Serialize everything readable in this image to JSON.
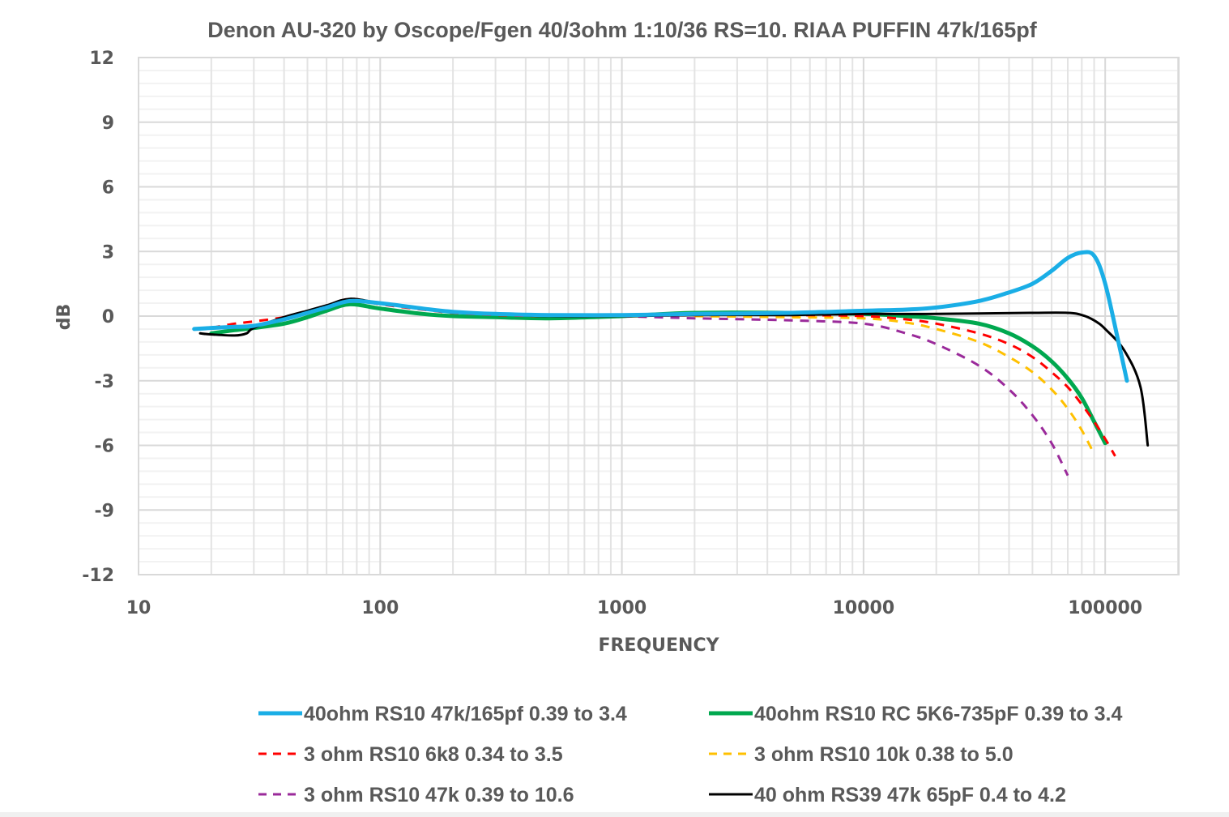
{
  "chart_data": {
    "type": "line",
    "title": "Denon AU-320 by Oscope/Fgen 40/3ohm 1:10/36 RS=10. RIAA PUFFIN 47k/165pf",
    "xlabel": "FREQUENCY",
    "ylabel": "dB",
    "xscale": "log",
    "xlim": [
      10,
      200000
    ],
    "ylim": [
      -12,
      12
    ],
    "xticks": [
      10,
      100,
      1000,
      10000,
      100000
    ],
    "xtick_labels": [
      "10",
      "100",
      "1000",
      "10000",
      "100000"
    ],
    "yticks": [
      12,
      9,
      6,
      3,
      0,
      -3,
      -6,
      -9,
      -12
    ],
    "ytick_labels": [
      "12",
      "9",
      "6",
      "3",
      "0",
      "-3",
      "-6",
      "-9",
      "-12"
    ],
    "grid": true,
    "legend_position": "bottom",
    "series": [
      {
        "name": "40ohm RS10 47k/165pf 0.39 to 3.4",
        "color": "#1aaee6",
        "style": "solid",
        "x": [
          17,
          20,
          25,
          30,
          40,
          50,
          60,
          75,
          100,
          150,
          200,
          300,
          500,
          1000,
          2000,
          5000,
          10000,
          15000,
          20000,
          30000,
          40000,
          50000,
          60000,
          70000,
          80000,
          90000,
          100000,
          115000,
          123000
        ],
        "y": [
          -0.6,
          -0.55,
          -0.5,
          -0.45,
          -0.15,
          0.15,
          0.4,
          0.7,
          0.6,
          0.35,
          0.2,
          0.1,
          0.05,
          0.05,
          0.1,
          0.15,
          0.25,
          0.3,
          0.4,
          0.7,
          1.1,
          1.5,
          2.1,
          2.7,
          2.95,
          2.8,
          1.5,
          -1.5,
          -3.0
        ]
      },
      {
        "name": "40ohm RS10 RC 5K6-735pF 0.39 to 3.4",
        "color": "#00a84f",
        "style": "solid",
        "x": [
          20,
          25,
          30,
          40,
          50,
          60,
          75,
          100,
          150,
          200,
          300,
          500,
          1000,
          2000,
          5000,
          10000,
          15000,
          20000,
          30000,
          40000,
          50000,
          60000,
          70000,
          80000,
          90000,
          100000
        ],
        "y": [
          -0.8,
          -0.65,
          -0.55,
          -0.35,
          -0.05,
          0.25,
          0.55,
          0.35,
          0.1,
          0.0,
          -0.05,
          -0.1,
          0.0,
          0.15,
          0.15,
          0.1,
          0.0,
          -0.1,
          -0.35,
          -0.8,
          -1.4,
          -2.1,
          -2.9,
          -3.8,
          -4.9,
          -5.9
        ]
      },
      {
        "name": "3 ohm RS10 6k8  0.34 to 3.5",
        "color": "#ff0000",
        "style": "dashed",
        "x": [
          20,
          25,
          30,
          40,
          50,
          60,
          75,
          100,
          150,
          200,
          300,
          500,
          1000,
          2000,
          5000,
          10000,
          15000,
          20000,
          30000,
          40000,
          50000,
          60000,
          70000,
          80000,
          90000,
          100000,
          110000
        ],
        "y": [
          -0.55,
          -0.35,
          -0.25,
          -0.05,
          0.2,
          0.45,
          0.8,
          0.55,
          0.3,
          0.15,
          0.05,
          0.0,
          0.0,
          0.05,
          0.05,
          0.0,
          -0.15,
          -0.35,
          -0.8,
          -1.3,
          -1.9,
          -2.6,
          -3.3,
          -4.1,
          -4.9,
          -5.7,
          -6.5
        ]
      },
      {
        "name": "3 ohm RS10 10k  0.38 to 5.0",
        "color": "#ffc000",
        "style": "dashed",
        "x": [
          2000,
          5000,
          10000,
          15000,
          20000,
          30000,
          40000,
          50000,
          60000,
          70000,
          80000,
          90000
        ],
        "y": [
          0.0,
          -0.05,
          -0.1,
          -0.3,
          -0.6,
          -1.2,
          -1.9,
          -2.6,
          -3.4,
          -4.3,
          -5.3,
          -6.4
        ]
      },
      {
        "name": "3 ohm RS10 47k 0.39  to 10.6",
        "color": "#9a2a9a",
        "style": "dashed",
        "x": [
          1000,
          2000,
          5000,
          10000,
          15000,
          20000,
          30000,
          40000,
          50000,
          60000,
          70000
        ],
        "y": [
          0.0,
          -0.1,
          -0.2,
          -0.35,
          -0.8,
          -1.3,
          -2.3,
          -3.4,
          -4.6,
          -5.9,
          -7.4
        ]
      },
      {
        "name": "40 ohm RS39 47k 65pF  0.4 to 4.2",
        "color": "#000000",
        "style": "solid",
        "x": [
          18,
          20,
          25,
          28,
          30,
          40,
          50,
          60,
          75,
          100,
          150,
          200,
          300,
          500,
          1000,
          2000,
          5000,
          10000,
          20000,
          50000,
          70000,
          80000,
          90000,
          100000,
          120000,
          140000,
          150000
        ],
        "y": [
          -0.8,
          -0.85,
          -0.9,
          -0.8,
          -0.55,
          -0.05,
          0.25,
          0.5,
          0.8,
          0.6,
          0.35,
          0.2,
          0.1,
          0.0,
          0.0,
          0.05,
          0.05,
          0.1,
          0.1,
          0.15,
          0.15,
          0.05,
          -0.2,
          -0.6,
          -1.6,
          -3.3,
          -6.0
        ]
      }
    ]
  }
}
